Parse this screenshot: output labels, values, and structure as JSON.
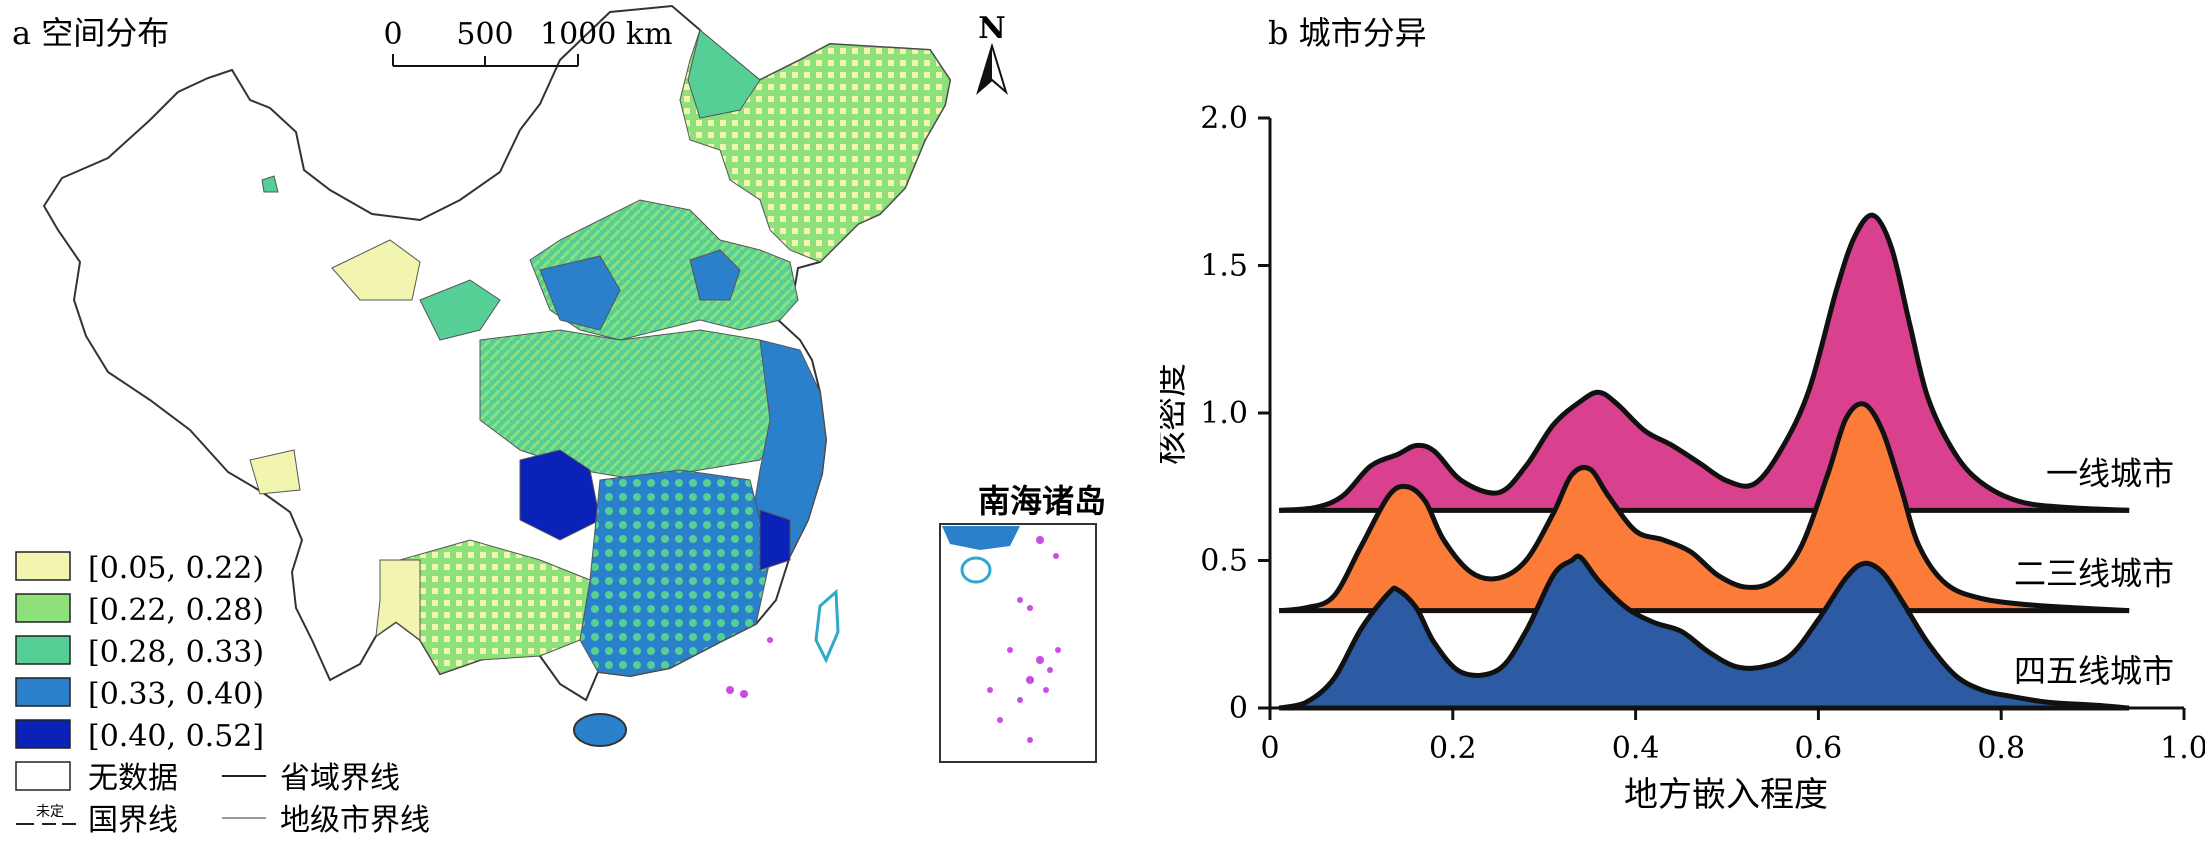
{
  "map": {
    "panel_title": "a 空间分布",
    "scale_bar": {
      "ticks": [
        "0",
        "500",
        "1000 km"
      ]
    },
    "north_label": "N",
    "inset_title": "南海诸岛",
    "legend": {
      "classes": [
        {
          "label": "[0.05, 0.22)",
          "color": "#f2f5b0"
        },
        {
          "label": "[0.22, 0.28)",
          "color": "#8ee07a"
        },
        {
          "label": "[0.28, 0.33)",
          "color": "#56cf96"
        },
        {
          "label": "[0.33, 0.40)",
          "color": "#2b80cc"
        },
        {
          "label": "[0.40, 0.52]",
          "color": "#0a22b8"
        }
      ],
      "no_data": "无数据",
      "province_border": "省域界线",
      "national_border": "国界线",
      "national_border_mark": "未定",
      "city_border": "地级市界线"
    }
  },
  "chart_data": {
    "type": "area",
    "title": "b 城市分异",
    "xlabel": "地方嵌入程度",
    "ylabel": "核密度",
    "xlim": [
      0,
      1.0
    ],
    "ylim": [
      0,
      2.0
    ],
    "x_ticks": [
      "0",
      "0.2",
      "0.4",
      "0.6",
      "0.8",
      "1.0"
    ],
    "y_ticks": [
      "0",
      "0.5",
      "1.0",
      "1.5",
      "2.0"
    ],
    "series": [
      {
        "name": "一线城市",
        "color": "#d9418f",
        "baseline": 0.67,
        "x": [
          0.01,
          0.05,
          0.08,
          0.11,
          0.14,
          0.16,
          0.18,
          0.21,
          0.25,
          0.28,
          0.31,
          0.34,
          0.36,
          0.38,
          0.41,
          0.44,
          0.47,
          0.5,
          0.53,
          0.56,
          0.59,
          0.62,
          0.64,
          0.66,
          0.68,
          0.7,
          0.72,
          0.75,
          0.78,
          0.82,
          0.87,
          0.94
        ],
        "y": [
          0.67,
          0.68,
          0.72,
          0.82,
          0.86,
          0.89,
          0.87,
          0.77,
          0.73,
          0.82,
          0.96,
          1.04,
          1.07,
          1.03,
          0.94,
          0.89,
          0.83,
          0.77,
          0.76,
          0.88,
          1.08,
          1.42,
          1.6,
          1.67,
          1.56,
          1.3,
          1.05,
          0.86,
          0.76,
          0.7,
          0.68,
          0.67
        ]
      },
      {
        "name": "二三线城市",
        "color": "#fa7c38",
        "baseline": 0.33,
        "x": [
          0.01,
          0.04,
          0.07,
          0.1,
          0.13,
          0.15,
          0.17,
          0.19,
          0.22,
          0.25,
          0.28,
          0.31,
          0.33,
          0.35,
          0.37,
          0.4,
          0.43,
          0.46,
          0.49,
          0.52,
          0.55,
          0.58,
          0.61,
          0.63,
          0.65,
          0.67,
          0.69,
          0.71,
          0.74,
          0.78,
          0.83,
          0.88,
          0.94
        ],
        "y": [
          0.33,
          0.34,
          0.38,
          0.55,
          0.72,
          0.75,
          0.7,
          0.57,
          0.46,
          0.44,
          0.5,
          0.66,
          0.79,
          0.81,
          0.72,
          0.6,
          0.57,
          0.53,
          0.45,
          0.41,
          0.43,
          0.54,
          0.79,
          0.98,
          1.03,
          0.94,
          0.75,
          0.55,
          0.42,
          0.37,
          0.35,
          0.34,
          0.33
        ]
      },
      {
        "name": "四五线城市",
        "color": "#2c5aa3",
        "baseline": 0.0,
        "x": [
          0.01,
          0.04,
          0.07,
          0.1,
          0.13,
          0.14,
          0.16,
          0.18,
          0.21,
          0.25,
          0.28,
          0.31,
          0.33,
          0.34,
          0.36,
          0.39,
          0.42,
          0.45,
          0.48,
          0.51,
          0.54,
          0.57,
          0.6,
          0.63,
          0.65,
          0.67,
          0.69,
          0.72,
          0.75,
          0.78,
          0.81,
          0.85,
          0.9,
          0.94
        ],
        "y": [
          0.0,
          0.02,
          0.1,
          0.27,
          0.39,
          0.4,
          0.34,
          0.22,
          0.12,
          0.13,
          0.26,
          0.45,
          0.5,
          0.51,
          0.43,
          0.34,
          0.29,
          0.26,
          0.19,
          0.14,
          0.14,
          0.18,
          0.3,
          0.44,
          0.49,
          0.46,
          0.37,
          0.22,
          0.11,
          0.06,
          0.04,
          0.02,
          0.01,
          0.0
        ]
      }
    ]
  }
}
